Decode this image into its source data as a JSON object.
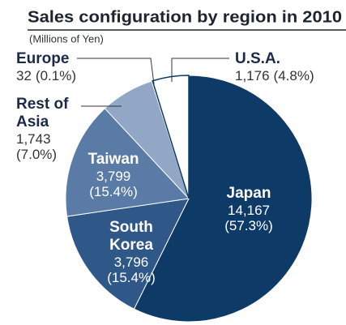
{
  "chart_data": {
    "type": "pie",
    "title": "Sales configuration by region in 2010",
    "subtitle": "(Millions of Yen)",
    "categories": [
      "Japan",
      "South Korea",
      "Taiwan",
      "Rest of Asia",
      "Europe",
      "U.S.A."
    ],
    "values": [
      14167,
      3796,
      3799,
      1743,
      32,
      1176
    ],
    "value_labels": [
      "14,167",
      "3,796",
      "3,799",
      "1,743",
      "32",
      "1,176"
    ],
    "shares": [
      57.3,
      15.4,
      15.4,
      7.0,
      0.1,
      4.8
    ],
    "share_labels": [
      "(57.3%)",
      "(15.4%)",
      "(15.4%)",
      "(7.0%)",
      "(0.1%)",
      "(4.8%)"
    ],
    "colors": [
      "#0e3a68",
      "#2f5787",
      "#5a7ba6",
      "#92a6c5",
      "#b9c5d9",
      "#ffffff"
    ]
  }
}
